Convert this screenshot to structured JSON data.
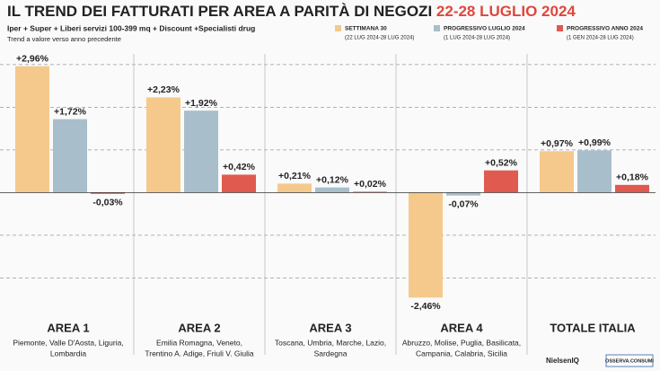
{
  "chart_data": {
    "type": "bar",
    "title": "IL TREND DEI FATTURATI PER AREA A PARITÀ DI NEGOZI",
    "title_date": "22-28 LUGLIO 2024",
    "subtitle": "Iper + Super + Liberi servizi 100-399 mq + Discount +Specialisti drug",
    "subtitle2": "Trend a valore verso anno precedente",
    "categories": [
      "AREA 1",
      "AREA 2",
      "AREA 3",
      "AREA 4",
      "TOTALE ITALIA"
    ],
    "category_notes": [
      [
        "Piemonte, Valle D'Aosta, Liguria,",
        "Lombardia"
      ],
      [
        "Emilia Romagna, Veneto,",
        "Trentino A. Adige, Friuli V. Giulia"
      ],
      [
        "Toscana, Umbria, Marche, Lazio,",
        "Sardegna"
      ],
      [
        "Abruzzo, Molise, Puglia, Basilicata,",
        "Campania, Calabria, Sicilia"
      ],
      null
    ],
    "series": [
      {
        "name": "SETTIMANA 30",
        "note": "(22 LUG 2024-28 LUG 2024)",
        "color": "#f5c98c",
        "values": [
          2.96,
          2.23,
          0.21,
          -2.46,
          0.97
        ],
        "value_labels": [
          "+2,96%",
          "+2,23%",
          "+0,21%",
          "-2,46%",
          "+0,97%"
        ]
      },
      {
        "name": "PROGRESSIVO LUGLIO 2024",
        "note": "(1 LUG 2024-28 LUG 2024)",
        "color": "#a8bfcb",
        "values": [
          1.72,
          1.92,
          0.12,
          -0.07,
          0.99
        ],
        "value_labels": [
          "+1,72%",
          "+1,92%",
          "+0,12%",
          "-0,07%",
          "+0,99%"
        ]
      },
      {
        "name": "PROGRESSIVO ANNO 2024",
        "note": "(1 GEN 2024-28 LUG 2024)",
        "color": "#e05a50",
        "values": [
          -0.03,
          0.42,
          0.02,
          0.52,
          0.18
        ],
        "value_labels": [
          "-0,03%",
          "+0,42%",
          "+0,02%",
          "+0,52%",
          "+0,18%"
        ]
      }
    ],
    "ylim": [
      -2.75,
      3.25
    ],
    "ygrid": [
      -2,
      -1,
      1,
      2,
      3
    ],
    "logos": [
      "NielsenIQ",
      "OSSERVA.CONSUMI"
    ]
  }
}
